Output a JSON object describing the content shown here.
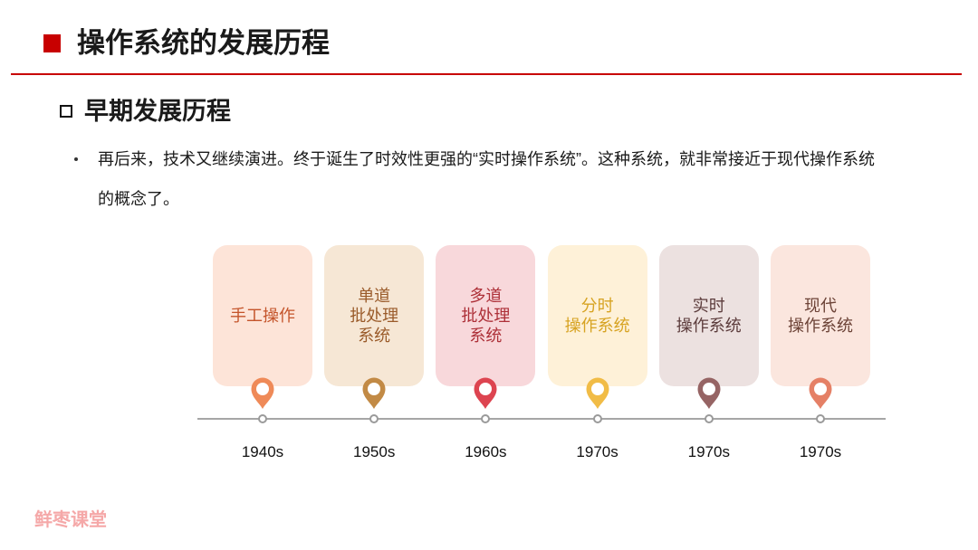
{
  "header": {
    "icon": "square-icon",
    "title": "操作系统的发展历程"
  },
  "section": {
    "icon": "hollow-square-icon",
    "title": "早期发展历程"
  },
  "bullets": [
    {
      "icon": "bullet-dot-icon",
      "text": "再后来，技术又继续演进。终于诞生了时效性更强的“实时操作系统”。这种系统，就非常接近于现代操作系统的概念了。"
    }
  ],
  "timeline": {
    "pin_icon": "location-pin-icon",
    "node_icon": "timeline-node-icon",
    "stages": [
      {
        "lines": [
          "手工操作"
        ],
        "year": "1940s",
        "card_color": "#fde4d8",
        "text_color": "#c4542a",
        "pin_color": "#ef8a58"
      },
      {
        "lines": [
          "单道",
          "批处理",
          "系统"
        ],
        "year": "1950s",
        "card_color": "#f6e7d5",
        "text_color": "#9a5b2a",
        "pin_color": "#c28a45"
      },
      {
        "lines": [
          "多道",
          "批处理",
          "系统"
        ],
        "year": "1960s",
        "card_color": "#f8d8db",
        "text_color": "#ad3038",
        "pin_color": "#dd4450"
      },
      {
        "lines": [
          "分时",
          "操作系统"
        ],
        "year": "1970s",
        "card_color": "#fef1d8",
        "text_color": "#d7a322",
        "pin_color": "#f1bc46"
      },
      {
        "lines": [
          "实时",
          "操作系统"
        ],
        "year": "1970s",
        "card_color": "#ece1e0",
        "text_color": "#5c3c3c",
        "pin_color": "#966464"
      },
      {
        "lines": [
          "现代",
          "操作系统"
        ],
        "year": "1970s",
        "card_color": "#fbe6de",
        "text_color": "#6c4337",
        "pin_color": "#e58066"
      }
    ]
  },
  "watermark": "鲜枣课堂",
  "colors": {
    "accent": "#c80000",
    "text": "#1a1a1a",
    "timeline_line": "#a6a6a6",
    "watermark": "#f5a8a8"
  }
}
